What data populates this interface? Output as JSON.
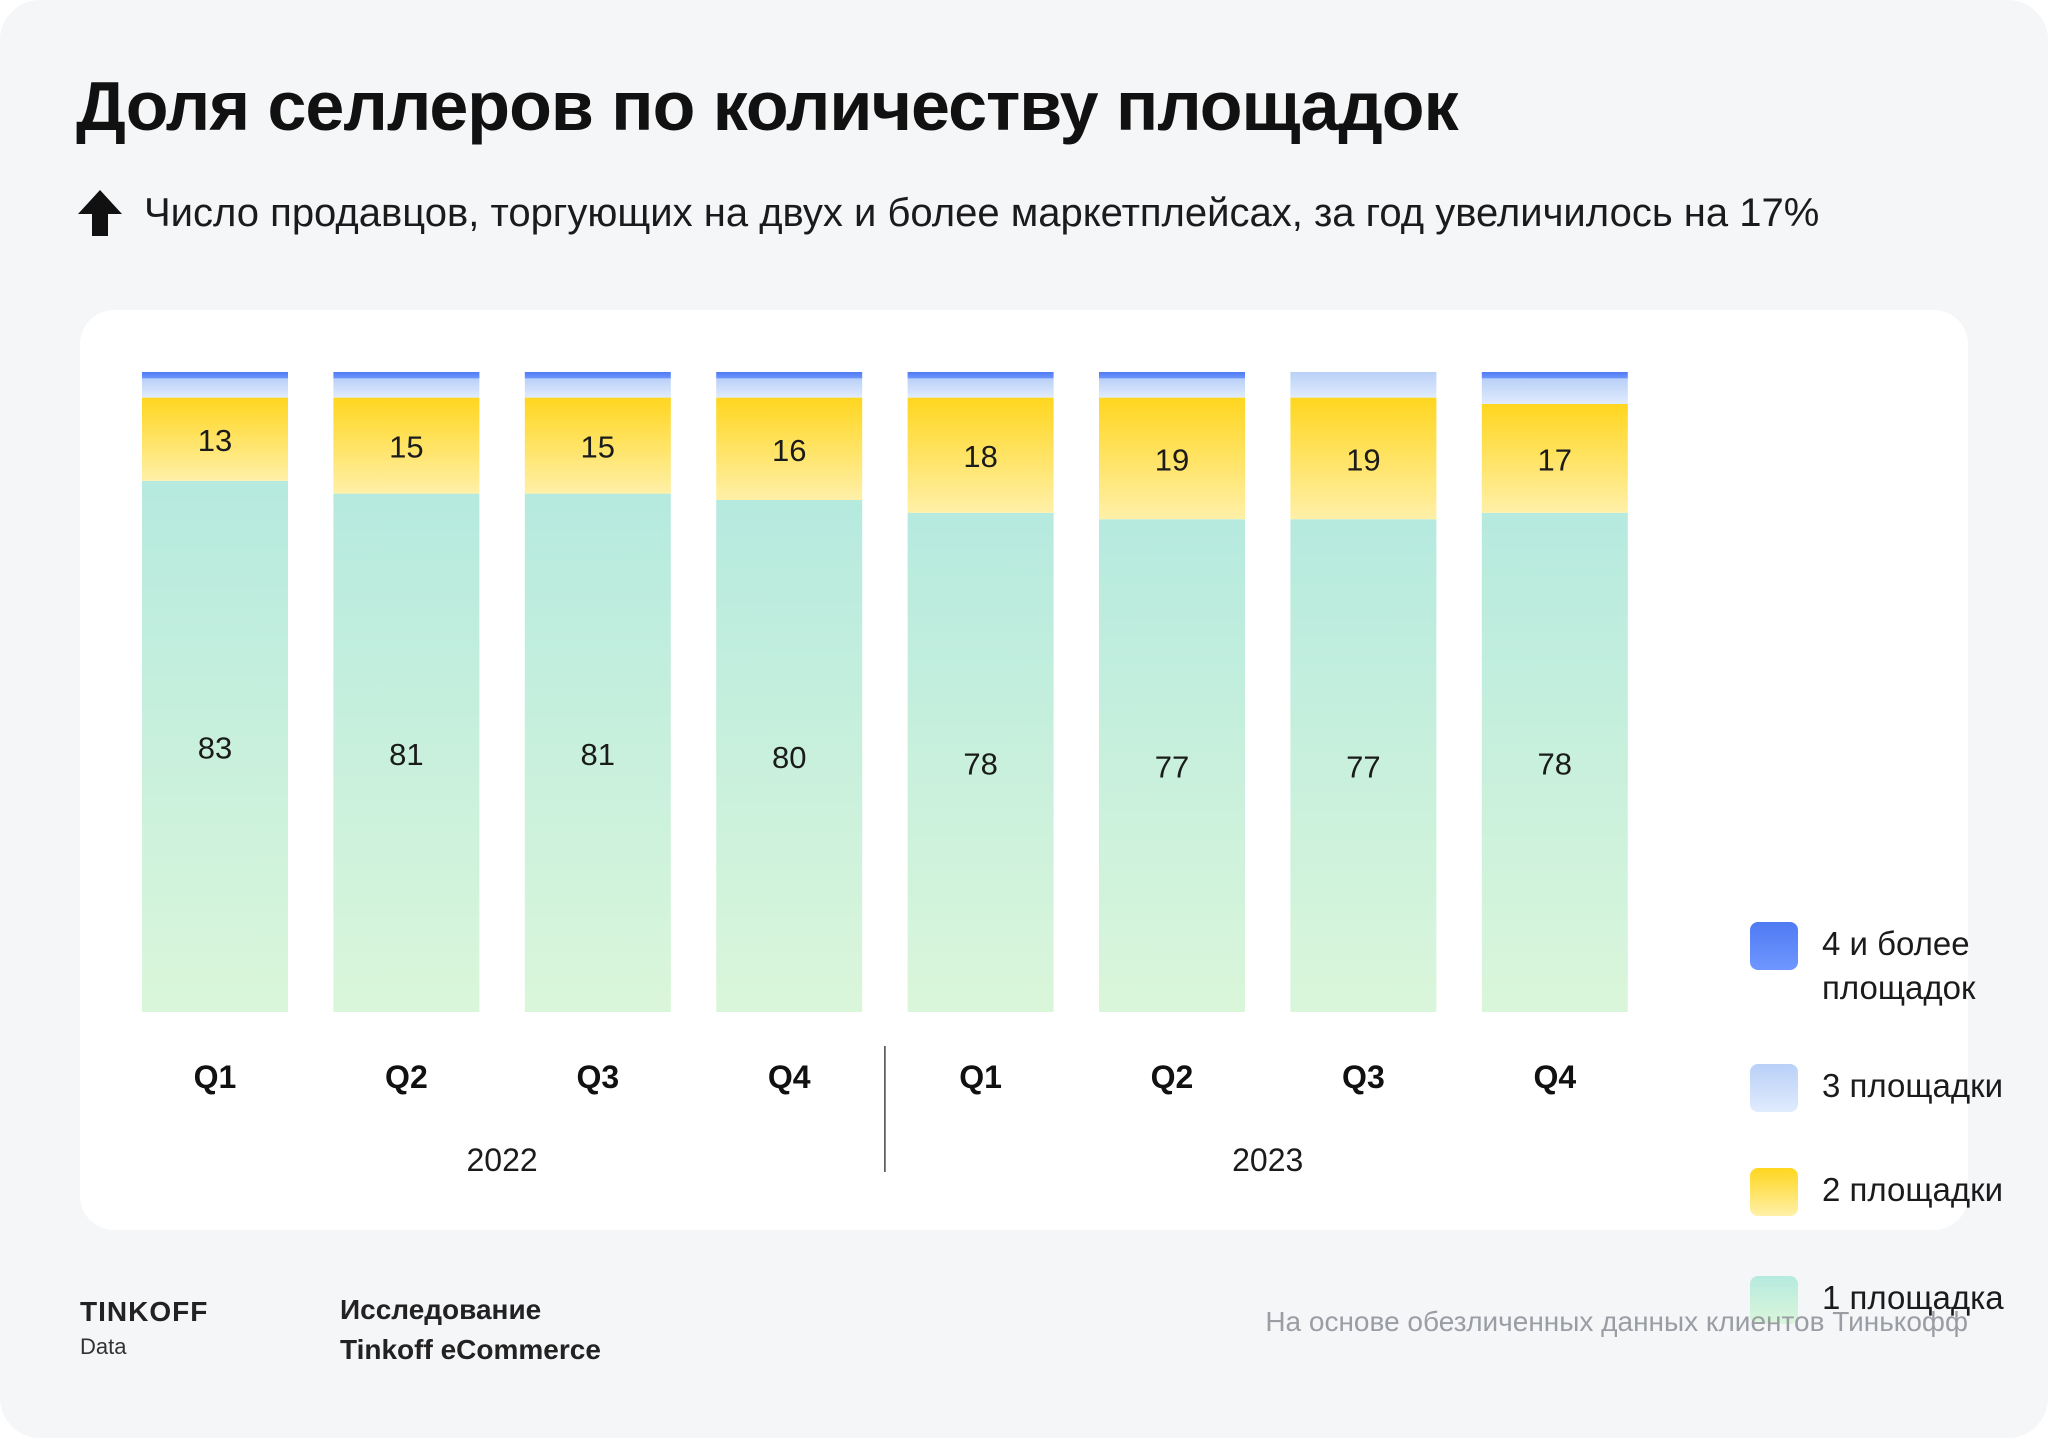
{
  "title": "Доля селлеров по количеству площадок",
  "subtitle": "Число продавцов, торгующих на двух и более маркетплейсах, за год увеличилось на 17%",
  "legend": {
    "items": [
      {
        "label": "4 и более площадок",
        "color_top": "#4f7af2",
        "color_bottom": "#6f97ff"
      },
      {
        "label": "3 площадки",
        "color_top": "#b9d0f7",
        "color_bottom": "#e0ebfd"
      },
      {
        "label": "2 площадки",
        "color_top": "#ffd61f",
        "color_bottom": "#fff0a8"
      },
      {
        "label": "1 площадка",
        "color_top": "#b6eadf",
        "color_bottom": "#daf6da"
      }
    ]
  },
  "chart_data": {
    "type": "bar",
    "stacked": true,
    "title": "Доля селлеров по количеству площадок",
    "categories": [
      "Q1",
      "Q2",
      "Q3",
      "Q4",
      "Q1",
      "Q2",
      "Q3",
      "Q4"
    ],
    "groups": [
      {
        "label": "2022",
        "from": 0,
        "to": 3
      },
      {
        "label": "2023",
        "from": 4,
        "to": 7
      }
    ],
    "ylim": [
      0,
      100
    ],
    "series": [
      {
        "name": "1 площадка",
        "values": [
          83,
          81,
          81,
          80,
          78,
          77,
          77,
          78
        ],
        "labels_shown": true
      },
      {
        "name": "2 площадки",
        "values": [
          13,
          15,
          15,
          16,
          18,
          19,
          19,
          17
        ],
        "labels_shown": true
      },
      {
        "name": "3 площадки",
        "values": [
          3,
          3,
          3,
          3,
          3,
          3,
          4,
          4
        ],
        "labels_shown": false
      },
      {
        "name": "4 и более площадок",
        "values": [
          1,
          1,
          1,
          1,
          1,
          1,
          0,
          1
        ],
        "labels_shown": false
      }
    ]
  },
  "footer": {
    "brand_name": "TINKOFF",
    "brand_sub": "Data",
    "study_line1": "Исследование",
    "study_line2": "Tinkoff eCommerce",
    "note": "На основе обезличенных данных клиентов Тинькофф"
  }
}
